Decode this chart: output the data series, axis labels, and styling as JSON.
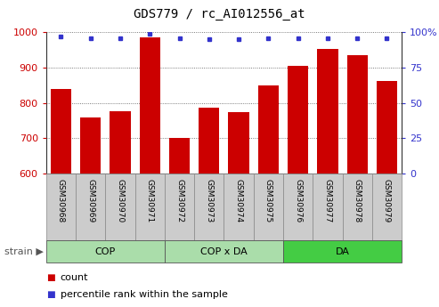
{
  "title": "GDS779 / rc_AI012556_at",
  "categories": [
    "GSM30968",
    "GSM30969",
    "GSM30970",
    "GSM30971",
    "GSM30972",
    "GSM30973",
    "GSM30974",
    "GSM30975",
    "GSM30976",
    "GSM30977",
    "GSM30978",
    "GSM30979"
  ],
  "bar_values": [
    840,
    759,
    775,
    985,
    700,
    787,
    773,
    849,
    904,
    952,
    934,
    863
  ],
  "percentile_values": [
    97,
    96,
    96,
    99,
    96,
    95,
    95,
    96,
    96,
    96,
    96,
    96
  ],
  "bar_color": "#cc0000",
  "dot_color": "#3333cc",
  "ylim_left": [
    600,
    1000
  ],
  "ylim_right": [
    0,
    100
  ],
  "yticks_left": [
    600,
    700,
    800,
    900,
    1000
  ],
  "yticks_right": [
    0,
    25,
    50,
    75,
    100
  ],
  "ytick_labels_right": [
    "0",
    "25",
    "50",
    "75",
    "100%"
  ],
  "group_configs": [
    {
      "label": "COP",
      "start": 0,
      "end": 3,
      "color": "#aaddaa"
    },
    {
      "label": "COP x DA",
      "start": 4,
      "end": 7,
      "color": "#aaddaa"
    },
    {
      "label": "DA",
      "start": 8,
      "end": 11,
      "color": "#44cc44"
    }
  ],
  "strain_label": "strain",
  "legend_count_label": "count",
  "legend_percentile_label": "percentile rank within the sample",
  "background_color": "#ffffff",
  "tick_label_color_left": "#cc0000",
  "tick_label_color_right": "#3333cc",
  "grid_color": "#555555",
  "bar_width": 0.7,
  "cat_box_color": "#cccccc",
  "cat_box_edge": "#888888"
}
